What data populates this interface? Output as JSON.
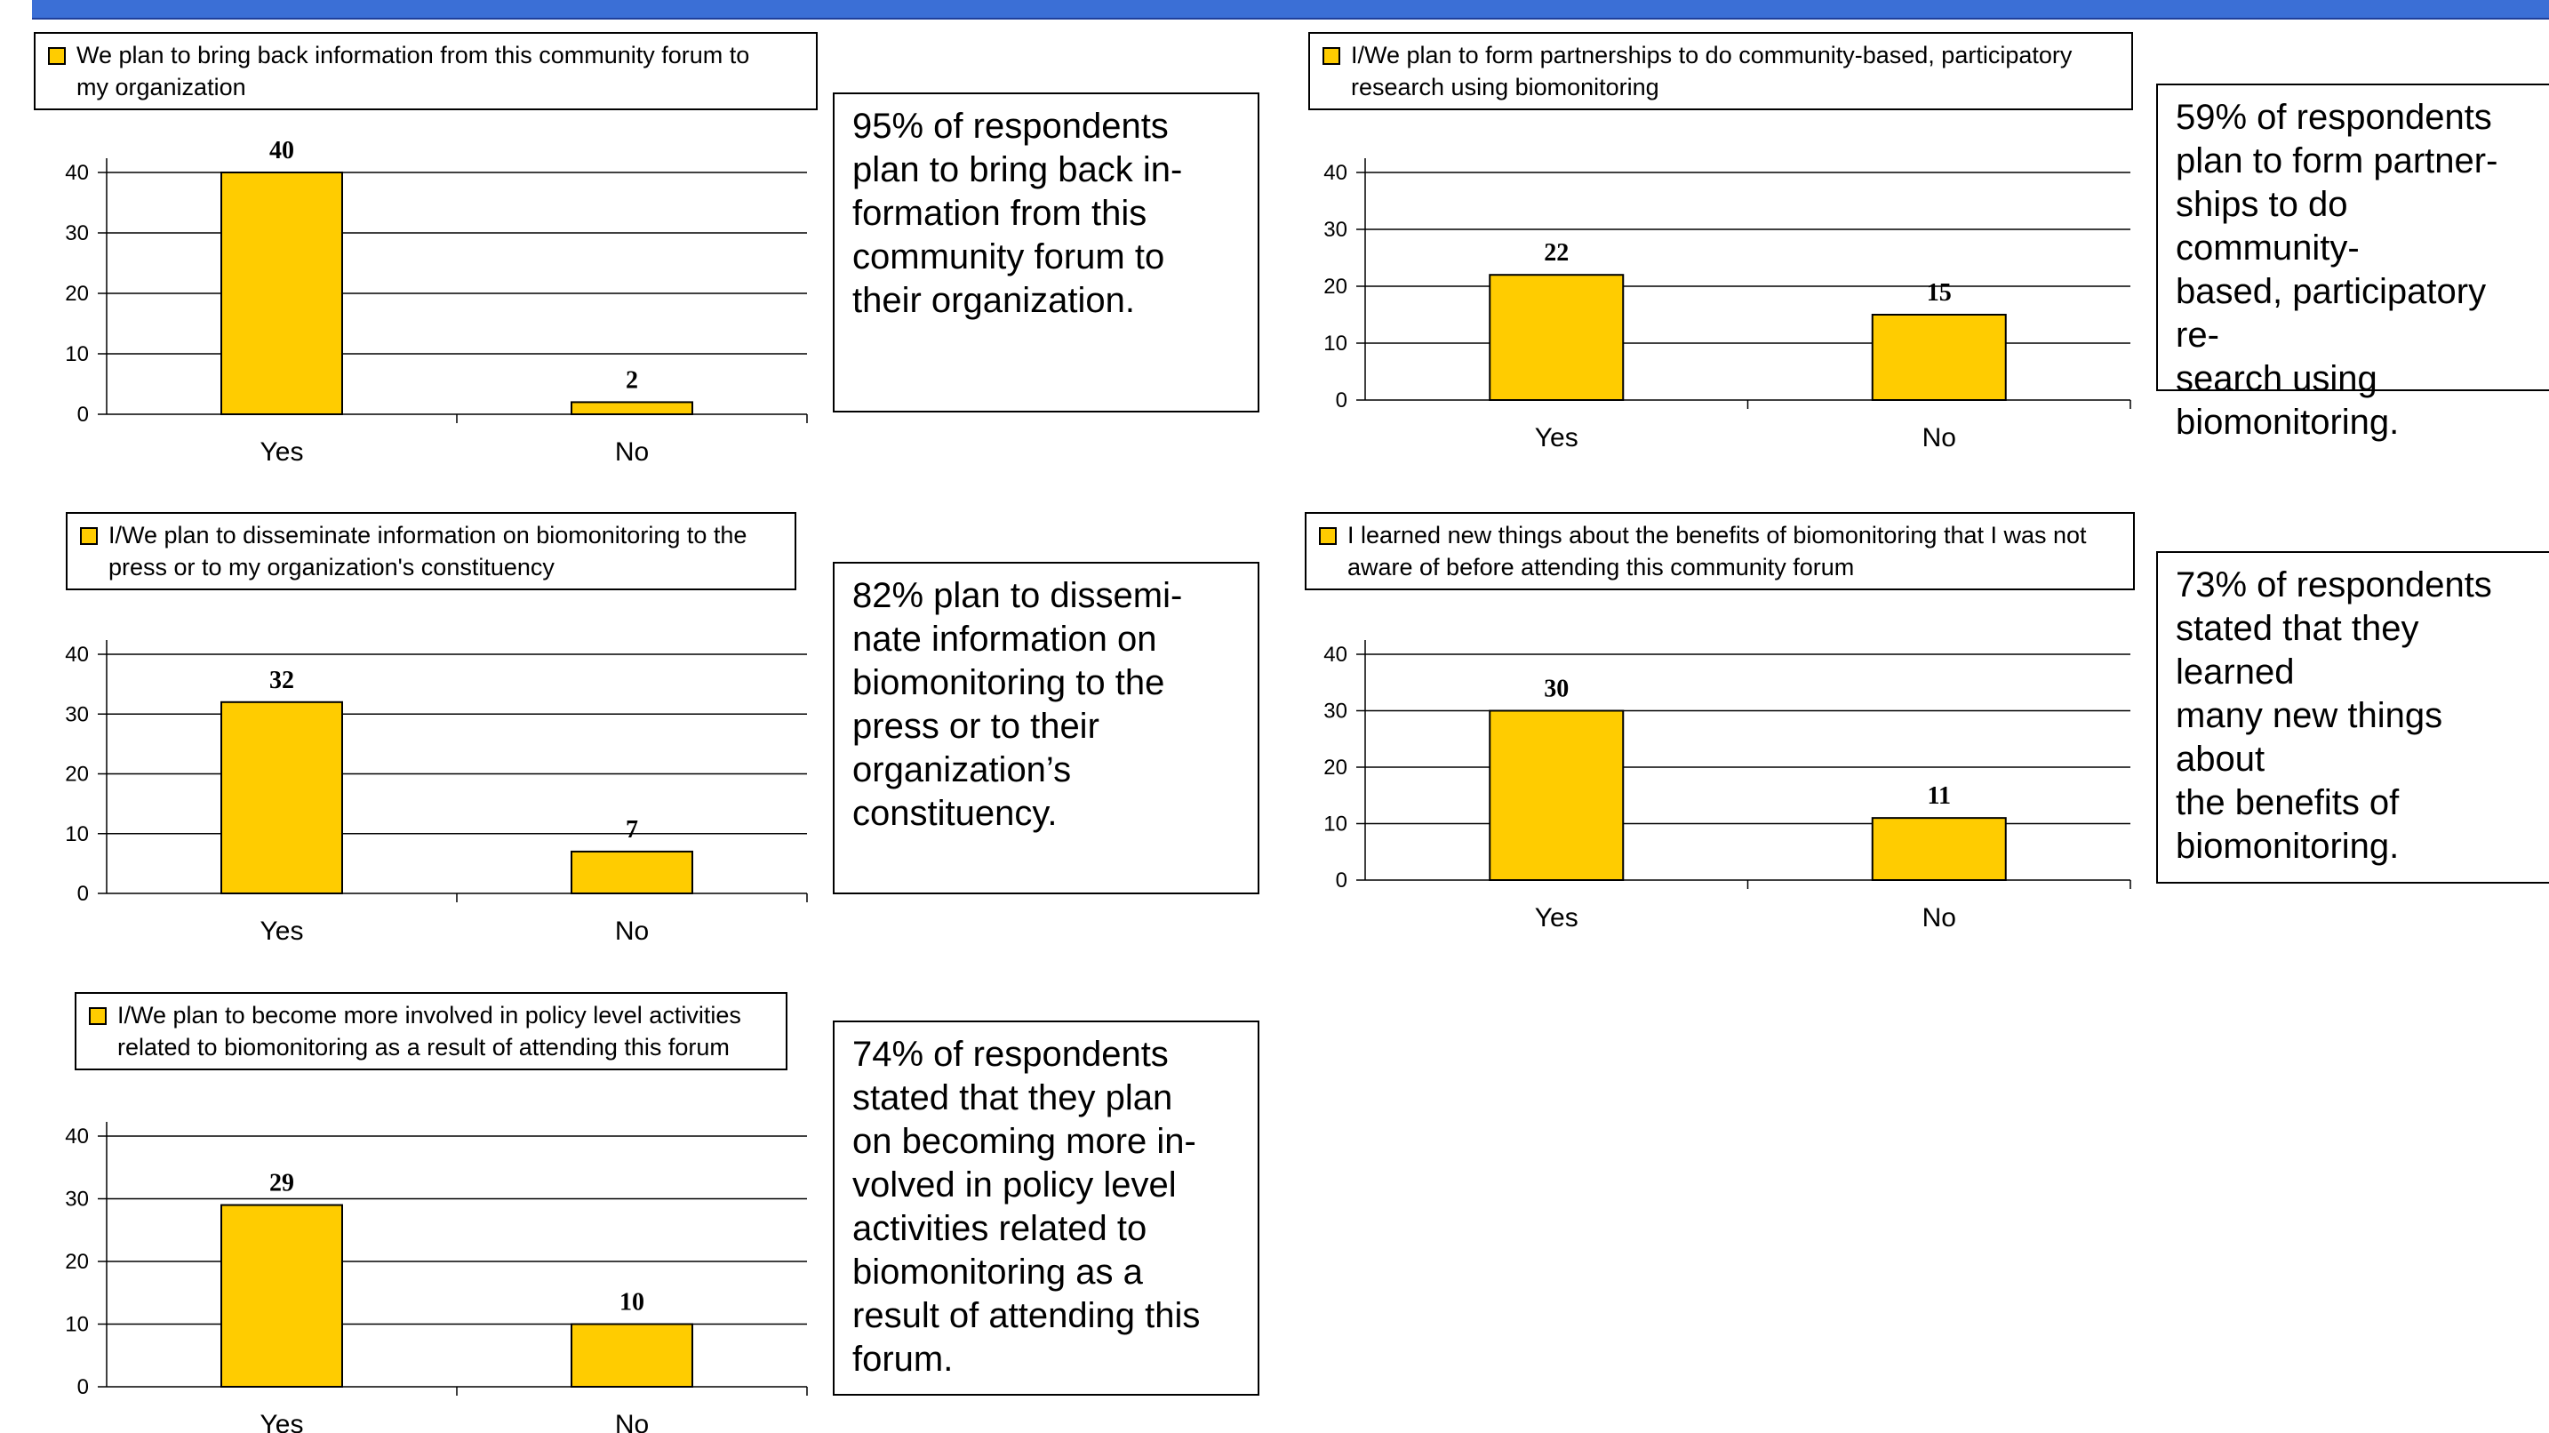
{
  "colors": {
    "bar": "#ffcc00",
    "bar_stroke": "#000000",
    "title_bar": "#3b6fd6"
  },
  "panels": [
    {
      "legend_lines": [
        "We plan to bring back information from this community forum to",
        "my organization"
      ],
      "note": "95% of respondents\nplan to bring back in-\nformation from this\ncommunity forum to\ntheir organization."
    },
    {
      "legend_lines": [
        "I/We plan to form partnerships to do community-based, participatory",
        "research using biomonitoring"
      ],
      "note": "59% of respondents\nplan to form partner-\nships to do community-\nbased, participatory re-\nsearch using\nbiomonitoring."
    },
    {
      "legend_lines": [
        "I/We plan to disseminate information on biomonitoring to the",
        "press or to my organization's constituency"
      ],
      "note": "82% plan to dissemi-\nnate information on\nbiomonitoring to the\npress or to their\norganization’s\nconstituency."
    },
    {
      "legend_lines": [
        "I learned new things about the benefits of biomonitoring that I was not",
        "aware of before attending this community forum"
      ],
      "note": "73% of respondents\nstated that they learned\nmany new things about\nthe benefits of\nbiomonitoring."
    },
    {
      "legend_lines": [
        "I/We plan to become more involved in policy level activities",
        "related to biomonitoring as a result of attending this forum"
      ],
      "note": "74% of respondents\nstated that they plan\non becoming more in-\nvolved in policy level\nactivities related to\nbiomonitoring as a\nresult of attending this\nforum."
    }
  ],
  "chart_data": [
    {
      "type": "bar",
      "categories": [
        "Yes",
        "No"
      ],
      "series": [
        {
          "name": "We plan to bring back information from this community forum to my organization",
          "values": [
            40,
            2
          ]
        }
      ],
      "ylim": [
        0,
        40
      ],
      "yticks": [
        0,
        10,
        20,
        30,
        40
      ],
      "grid": true,
      "legend": "top"
    },
    {
      "type": "bar",
      "categories": [
        "Yes",
        "No"
      ],
      "series": [
        {
          "name": "I/We plan to form partnerships to do community-based, participatory research using biomonitoring",
          "values": [
            22,
            15
          ]
        }
      ],
      "ylim": [
        0,
        40
      ],
      "yticks": [
        0,
        10,
        20,
        30,
        40
      ],
      "grid": true,
      "legend": "top"
    },
    {
      "type": "bar",
      "categories": [
        "Yes",
        "No"
      ],
      "series": [
        {
          "name": "I/We plan to disseminate information on biomonitoring to the press or to my organization's constituency",
          "values": [
            32,
            7
          ]
        }
      ],
      "ylim": [
        0,
        40
      ],
      "yticks": [
        0,
        10,
        20,
        30,
        40
      ],
      "grid": true,
      "legend": "top"
    },
    {
      "type": "bar",
      "categories": [
        "Yes",
        "No"
      ],
      "series": [
        {
          "name": "I learned new things about the benefits of biomonitoring that I was not aware of before attending this community forum",
          "values": [
            30,
            11
          ]
        }
      ],
      "ylim": [
        0,
        40
      ],
      "yticks": [
        0,
        10,
        20,
        30,
        40
      ],
      "grid": true,
      "legend": "top"
    },
    {
      "type": "bar",
      "categories": [
        "Yes",
        "No"
      ],
      "series": [
        {
          "name": "I/We plan to become more involved in policy level activities related to biomonitoring as a result of attending this forum",
          "values": [
            29,
            10
          ]
        }
      ],
      "ylim": [
        0,
        40
      ],
      "yticks": [
        0,
        10,
        20,
        30,
        40
      ],
      "grid": true,
      "legend": "top"
    }
  ]
}
